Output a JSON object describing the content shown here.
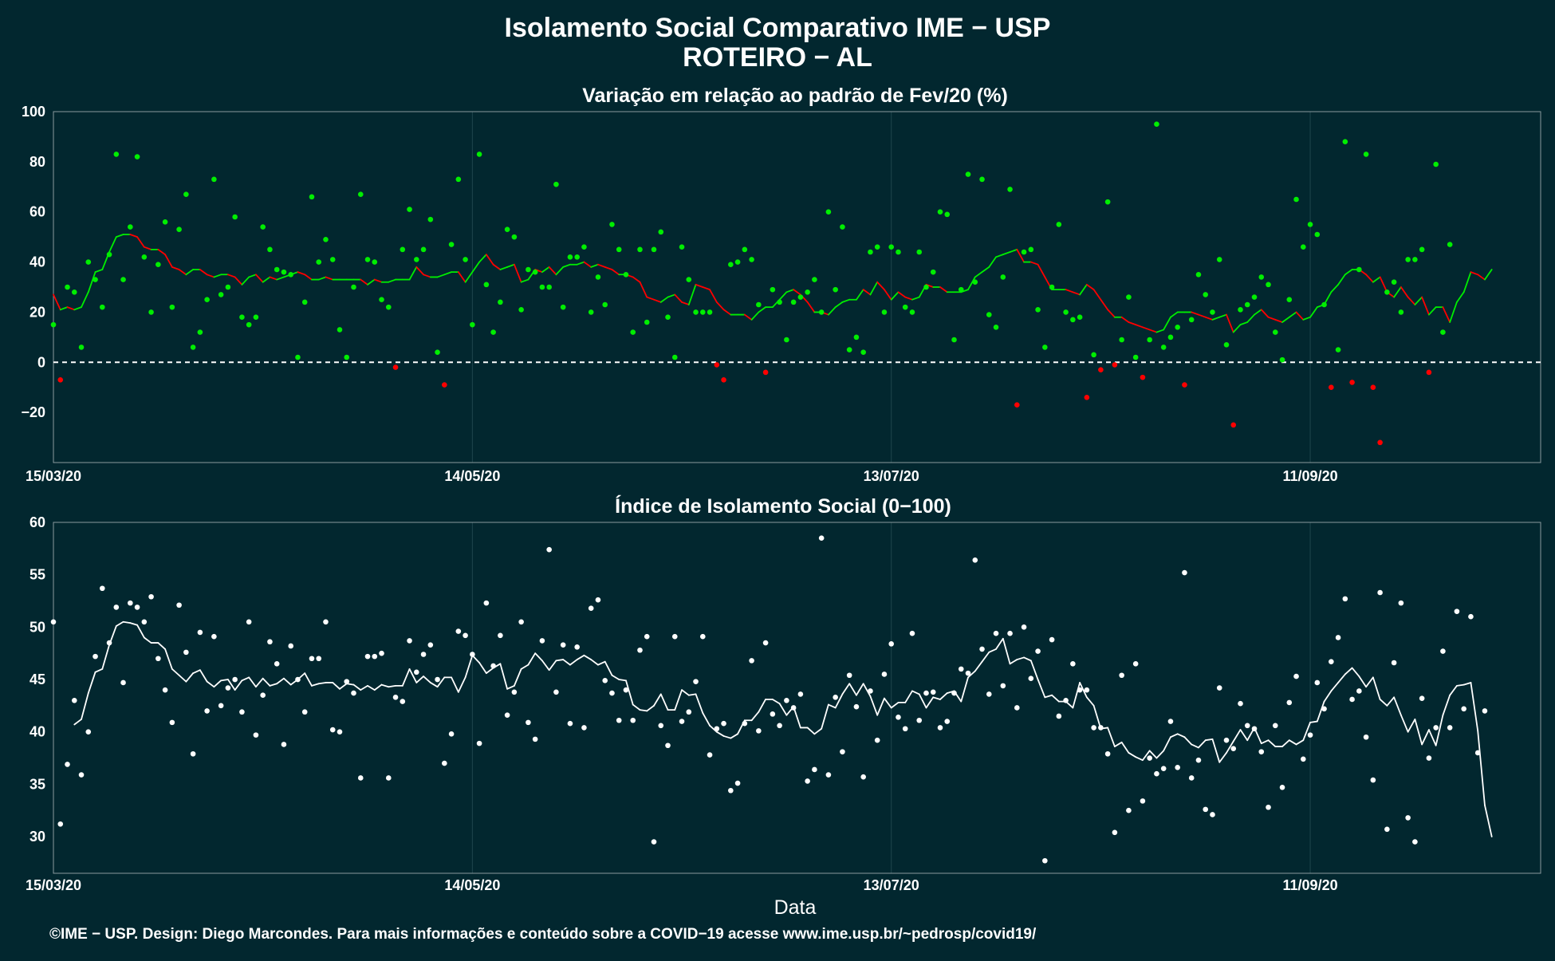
{
  "header": {
    "title": "Isolamento Social Comparativo IME − USP",
    "subtitle": "ROTEIRO − AL"
  },
  "xlabel": "Data",
  "caption": "©IME − USP. Design: Diego Marcondes. Para mais informações e conteúdo sobre a COVID−19 acesse www.ime.usp.br/~pedrosp/covid19/",
  "colors": {
    "background": "#02272f",
    "positive": "#00ee00",
    "negative": "#ff0000",
    "index_series": "#ffffff"
  },
  "chart_data": [
    {
      "type": "scatter",
      "title": "Variação em relação ao padrão de Fev/20 (%)",
      "x_start": "15/03/20",
      "x_end": "14/10/20",
      "x_ticks": [
        "15/03/20",
        "14/05/20",
        "13/07/20",
        "11/09/20"
      ],
      "y_ticks": [
        100,
        80,
        60,
        40,
        20,
        0,
        -20
      ],
      "ylim": [
        -40,
        100
      ],
      "reference_line": 0,
      "series": [
        {
          "name": "Variação diária",
          "kind": "points",
          "values": [
            15,
            -7,
            30,
            28,
            6,
            40,
            33,
            22,
            43,
            83,
            33,
            54,
            82,
            42,
            20,
            39,
            56,
            22,
            53,
            67,
            6,
            12,
            25,
            73,
            27,
            30,
            58,
            18,
            15,
            18,
            54,
            45,
            37,
            36,
            35,
            2,
            24,
            66,
            40,
            49,
            41,
            13,
            2,
            30,
            67,
            41,
            40,
            25,
            22,
            -2,
            45,
            61,
            41,
            45,
            57,
            4,
            -9,
            47,
            73,
            41,
            15,
            83,
            31,
            12,
            24,
            53,
            50,
            21,
            37,
            36,
            30,
            30,
            71,
            22,
            42,
            42,
            46,
            20,
            34,
            23,
            55,
            45,
            35,
            12,
            45,
            16,
            45,
            52,
            18,
            2,
            46,
            33,
            20,
            20,
            20,
            -1,
            -7,
            39,
            40,
            45,
            41,
            23,
            -4,
            29,
            24,
            9,
            24,
            26,
            28,
            33,
            20,
            60,
            29,
            54,
            5,
            10,
            4,
            44,
            46,
            20,
            46,
            44,
            22,
            20,
            44,
            30,
            36,
            60,
            59,
            9,
            29,
            75,
            32,
            73,
            19,
            14,
            34,
            69,
            -17,
            44,
            45,
            21,
            6,
            30,
            55,
            20,
            17,
            18,
            -14,
            3,
            -3,
            64,
            -1,
            9,
            26,
            2,
            -6,
            9,
            95,
            6,
            10,
            14,
            -9,
            17,
            35,
            27,
            20,
            41,
            7,
            -25,
            21,
            23,
            26,
            34,
            31,
            12,
            1,
            25,
            65,
            46,
            55,
            51,
            23,
            -10,
            5,
            88,
            -8,
            37,
            83,
            -10,
            -32,
            28,
            32,
            20,
            41,
            41,
            45,
            -4,
            79,
            12,
            47
          ]
        },
        {
          "name": "Média móvel",
          "kind": "line",
          "values": [
            27,
            21,
            22,
            21,
            22,
            28,
            36,
            37,
            44,
            50,
            51,
            51,
            50,
            46,
            45,
            45,
            43,
            38,
            37,
            35,
            37,
            37,
            35,
            34,
            35,
            35,
            34,
            31,
            34,
            35,
            32,
            34,
            33,
            34,
            35,
            36,
            35,
            33,
            33,
            34,
            33,
            33,
            33,
            33,
            33,
            31,
            33,
            32,
            32,
            33,
            33,
            33,
            38,
            35,
            34,
            34,
            35,
            36,
            36,
            32,
            36,
            40,
            43,
            39,
            37,
            38,
            39,
            32,
            33,
            37,
            36,
            38,
            35,
            38,
            39,
            39,
            40,
            38,
            39,
            38,
            37,
            35,
            35,
            34,
            32,
            26,
            25,
            24,
            26,
            27,
            24,
            23,
            31,
            30,
            29,
            24,
            21,
            19,
            19,
            19,
            17,
            20,
            22,
            22,
            25,
            28,
            29,
            27,
            24,
            20,
            20,
            19,
            22,
            24,
            25,
            25,
            29,
            27,
            32,
            29,
            25,
            28,
            26,
            25,
            26,
            31,
            30,
            30,
            28,
            28,
            28,
            29,
            34,
            36,
            38,
            42,
            43,
            44,
            45,
            40,
            40,
            39,
            34,
            29,
            29,
            29,
            28,
            27,
            31,
            29,
            25,
            21,
            18,
            18,
            16,
            15,
            14,
            13,
            12,
            13,
            18,
            20,
            20,
            20,
            19,
            18,
            17,
            18,
            19,
            12,
            15,
            16,
            19,
            21,
            18,
            17,
            16,
            18,
            20,
            17,
            18,
            22,
            23,
            28,
            31,
            35,
            37,
            37,
            35,
            32,
            34,
            28,
            26,
            30,
            26,
            23,
            26,
            19,
            22,
            22,
            16,
            24,
            28,
            36,
            35,
            33,
            37
          ]
        }
      ]
    },
    {
      "type": "scatter",
      "title": "Índice de Isolamento Social (0−100)",
      "x_start": "15/03/20",
      "x_end": "14/10/20",
      "x_ticks": [
        "15/03/20",
        "14/05/20",
        "13/07/20",
        "11/09/20"
      ],
      "y_ticks": [
        60,
        55,
        50,
        45,
        40,
        35,
        30
      ],
      "ylim": [
        26.5,
        60
      ],
      "series": [
        {
          "name": "Índice diário",
          "kind": "points",
          "values": [
            50.5,
            31.2,
            36.9,
            43.0,
            35.9,
            40.0,
            47.2,
            53.7,
            48.5,
            51.9,
            44.7,
            52.3,
            51.9,
            50.5,
            52.9,
            47.0,
            44.0,
            40.9,
            52.1,
            47.6,
            37.9,
            49.5,
            42.0,
            49.1,
            42.5,
            44.2,
            45.0,
            41.9,
            50.5,
            39.7,
            43.5,
            48.6,
            46.5,
            38.8,
            48.2,
            45.0,
            41.9,
            47.0,
            47.0,
            50.5,
            40.2,
            40.0,
            44.8,
            43.7,
            35.6,
            47.2,
            47.2,
            47.5,
            35.6,
            43.3,
            42.9,
            48.7,
            45.7,
            47.4,
            48.3,
            45.0,
            37.0,
            39.8,
            49.6,
            49.2,
            47.4,
            38.9,
            52.3,
            46.3,
            49.2,
            41.6,
            43.8,
            50.5,
            40.9,
            39.3,
            48.7,
            57.4,
            43.8,
            48.3,
            40.8,
            48.1,
            40.4,
            51.8,
            52.6,
            44.9,
            43.7,
            41.1,
            44.0,
            41.1,
            47.8,
            49.1,
            29.5,
            40.6,
            38.7,
            49.1,
            41.0,
            41.9,
            44.8,
            49.1,
            37.8,
            40.3,
            40.8,
            34.4,
            35.1,
            40.8,
            46.8,
            40.1,
            48.5,
            41.7,
            40.6,
            43.0,
            42.3,
            43.6,
            35.3,
            36.4,
            58.5,
            35.9,
            43.3,
            38.1,
            45.4,
            42.4,
            35.7,
            43.9,
            39.2,
            45.5,
            48.4,
            41.4,
            40.3,
            49.4,
            41.1,
            43.7,
            43.8,
            40.4,
            41.0,
            43.7,
            46.0,
            45.6,
            56.4,
            47.9,
            43.6,
            49.4,
            44.4,
            49.4,
            42.3,
            50.0,
            45.1,
            47.7,
            27.7,
            48.8,
            41.5,
            43.0,
            46.5,
            44.0,
            44.0,
            40.4,
            40.4,
            37.9,
            30.4,
            45.4,
            32.5,
            46.5,
            33.4,
            37.5,
            36.0,
            36.5,
            41.0,
            36.6,
            55.2,
            35.6,
            37.3,
            32.6,
            32.1,
            44.2,
            39.2,
            38.4,
            42.7,
            40.6,
            40.3,
            38.1,
            32.8,
            40.6,
            34.7,
            42.8,
            45.3,
            37.4,
            39.7,
            44.7,
            42.2,
            46.7,
            49.0,
            52.7,
            43.1,
            43.9,
            39.5,
            35.4,
            53.3,
            30.7,
            46.6,
            52.3,
            31.8,
            29.5,
            43.2,
            37.5,
            40.4,
            47.7,
            40.4,
            51.5,
            42.2,
            51.0,
            38.0,
            42.0
          ]
        },
        {
          "name": "Média móvel",
          "kind": "line",
          "values": [
            null,
            null,
            null,
            40.7,
            41.2,
            43.7,
            45.7,
            46.0,
            48.3,
            50.1,
            50.5,
            50.4,
            50.2,
            49.0,
            48.5,
            48.5,
            47.9,
            46.0,
            45.4,
            44.8,
            45.6,
            45.9,
            44.8,
            44.3,
            44.9,
            45.0,
            44.0,
            44.9,
            45.2,
            44.3,
            45.1,
            44.4,
            44.6,
            45.1,
            44.5,
            45.0,
            45.6,
            44.4,
            44.6,
            44.7,
            44.7,
            44.1,
            44.6,
            44.5,
            44.0,
            44.4,
            44.0,
            44.5,
            44.3,
            44.4,
            44.4,
            46.0,
            44.7,
            45.3,
            44.7,
            44.3,
            45.2,
            45.2,
            43.8,
            45.2,
            47.3,
            46.6,
            45.6,
            46.1,
            46.5,
            44.1,
            44.4,
            46.0,
            46.4,
            47.5,
            46.8,
            45.9,
            46.8,
            46.9,
            46.4,
            46.9,
            47.3,
            46.9,
            46.4,
            46.7,
            45.4,
            45.0,
            44.9,
            42.6,
            42.1,
            42.0,
            42.5,
            43.6,
            42.1,
            42.1,
            44.0,
            43.5,
            43.6,
            41.8,
            40.6,
            40.0,
            39.6,
            39.4,
            39.8,
            41.1,
            41.1,
            41.9,
            43.1,
            43.1,
            42.7,
            41.6,
            42.4,
            40.4,
            40.4,
            39.8,
            40.3,
            42.6,
            42.3,
            43.6,
            44.6,
            43.5,
            44.6,
            43.4,
            41.6,
            43.2,
            42.3,
            42.8,
            42.8,
            43.9,
            43.6,
            42.3,
            43.3,
            43.1,
            43.7,
            43.9,
            42.9,
            45.2,
            45.8,
            46.7,
            47.6,
            47.9,
            48.9,
            46.5,
            46.9,
            47.1,
            46.8,
            45.0,
            43.3,
            43.5,
            42.9,
            42.9,
            42.3,
            44.7,
            43.3,
            42.5,
            40.3,
            40.4,
            38.6,
            39.0,
            38.0,
            37.6,
            37.3,
            38.2,
            37.5,
            38.2,
            39.5,
            39.8,
            39.5,
            38.8,
            38.5,
            39.2,
            39.3,
            37.1,
            38.0,
            39.1,
            40.2,
            39.2,
            40.4,
            38.9,
            39.2,
            38.6,
            38.6,
            39.2,
            38.8,
            39.2,
            40.9,
            41.0,
            42.9,
            43.9,
            44.7,
            45.5,
            46.1,
            45.3,
            44.3,
            45.2,
            43.1,
            42.5,
            43.3,
            41.6,
            40.0,
            41.2,
            38.8,
            40.2,
            38.7,
            41.6,
            43.5,
            44.4,
            44.5,
            44.7,
            40.1,
            33.0,
            30.0
          ]
        }
      ]
    }
  ]
}
